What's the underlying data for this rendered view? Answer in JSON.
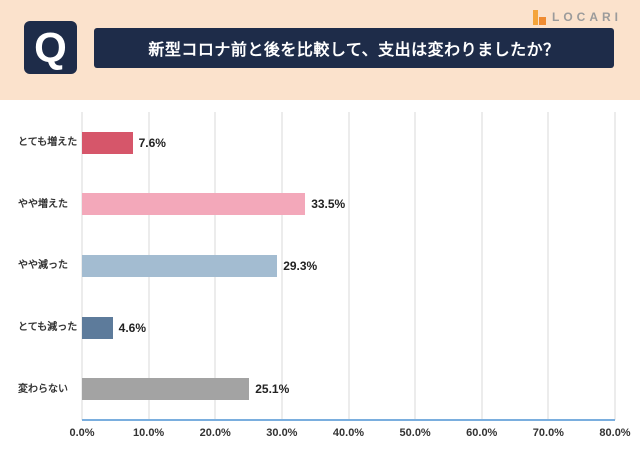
{
  "header": {
    "q_label": "Q",
    "title": "新型コロナ前と後を比較して、支出は変わりましたか？",
    "brand": "LOCARI"
  },
  "colors": {
    "background_band": "#fbe2cc",
    "banner_navy": "#1e2c49",
    "axis_blue": "#7aaede",
    "gridline": "#d9d9d9",
    "brand_orange": "#f4a43a"
  },
  "chart_data": {
    "type": "bar",
    "orientation": "horizontal",
    "title": "新型コロナ前と後を比較して、支出は変わりましたか？",
    "categories": [
      "とても増えた",
      "やや増えた",
      "やや減った",
      "とても減った",
      "変わらない"
    ],
    "values": [
      7.6,
      33.5,
      29.3,
      4.6,
      25.1
    ],
    "value_labels": [
      "7.6%",
      "33.5%",
      "29.3%",
      "4.6%",
      "25.1%"
    ],
    "bar_colors": [
      "#d6566a",
      "#f3a8ba",
      "#a3bcd1",
      "#5d7b9b",
      "#a3a3a3"
    ],
    "xlim": [
      0,
      80
    ],
    "x_ticks": [
      "0.0%",
      "10.0%",
      "20.0%",
      "30.0%",
      "40.0%",
      "50.0%",
      "60.0%",
      "70.0%",
      "80.0%"
    ],
    "grid": true,
    "legend": false
  }
}
